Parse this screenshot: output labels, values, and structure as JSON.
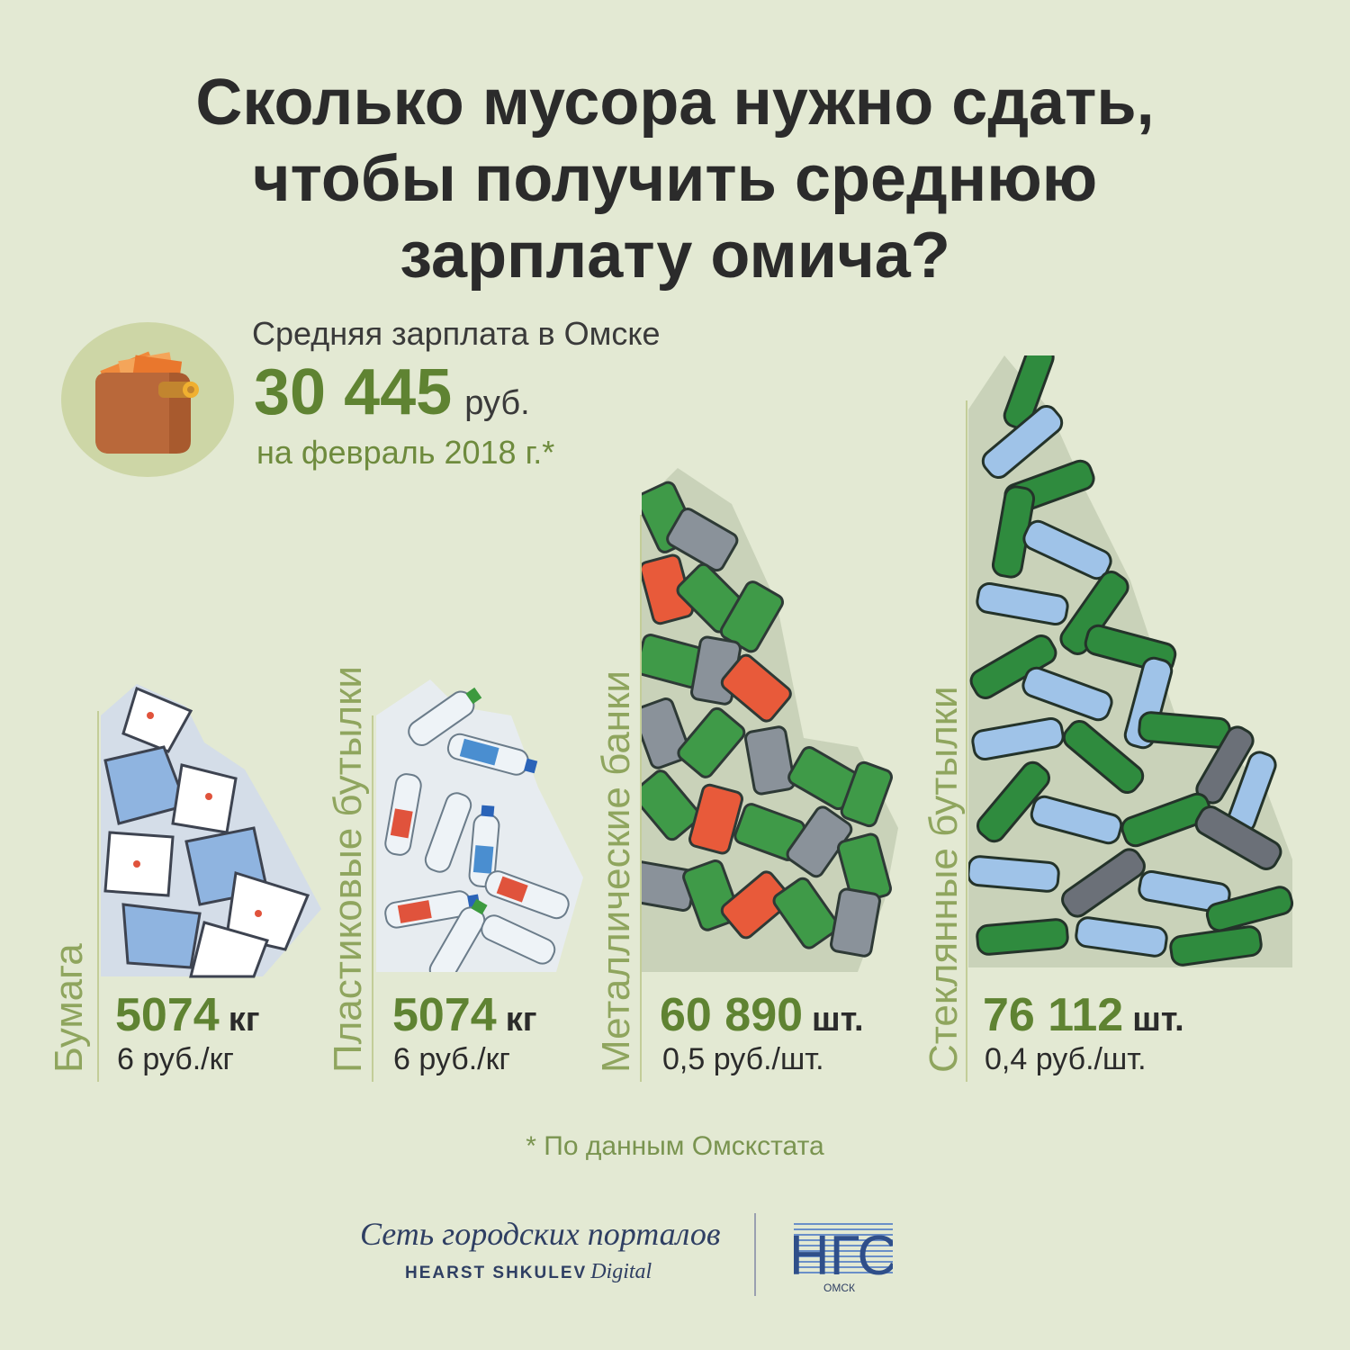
{
  "title": {
    "line1": "Сколько мусора нужно сдать,",
    "line2": "чтобы получить среднюю",
    "line3": "зарплату омича?"
  },
  "salary": {
    "caption": "Средняя зарплата в Омске",
    "value": "30 445",
    "unit": "руб.",
    "date": "на февраль 2018 г.*"
  },
  "items": [
    {
      "label": "Бумага",
      "amount": "5074",
      "unit": "кг",
      "rate": "6 руб./кг",
      "icon": "paper-pile-icon"
    },
    {
      "label": "Пластиковые бутылки",
      "amount": "5074",
      "unit": "кг",
      "rate": "6 руб./кг",
      "icon": "plastic-bottles-pile-icon"
    },
    {
      "label": "Металлические банки",
      "amount": "60 890",
      "unit": "шт.",
      "rate": "0,5 руб./шт.",
      "icon": "metal-cans-pile-icon"
    },
    {
      "label": "Стеклянные бутылки",
      "amount": "76 112",
      "unit": "шт.",
      "rate": "0,4 руб./шт.",
      "icon": "glass-bottles-pile-icon"
    }
  ],
  "footnote": "* По данным Омскстата",
  "footer": {
    "brand_main": "Сеть городских порталов",
    "brand_sub_bold": "HEARST SHKULEV",
    "brand_sub_italic": "Digital",
    "logo_text": "НГС",
    "logo_city": "ОМСК"
  },
  "colors": {
    "background": "#e3e9d3",
    "accent_green": "#5f8332",
    "label_green": "#8fa55e",
    "title_dark": "#2b2b2b"
  }
}
